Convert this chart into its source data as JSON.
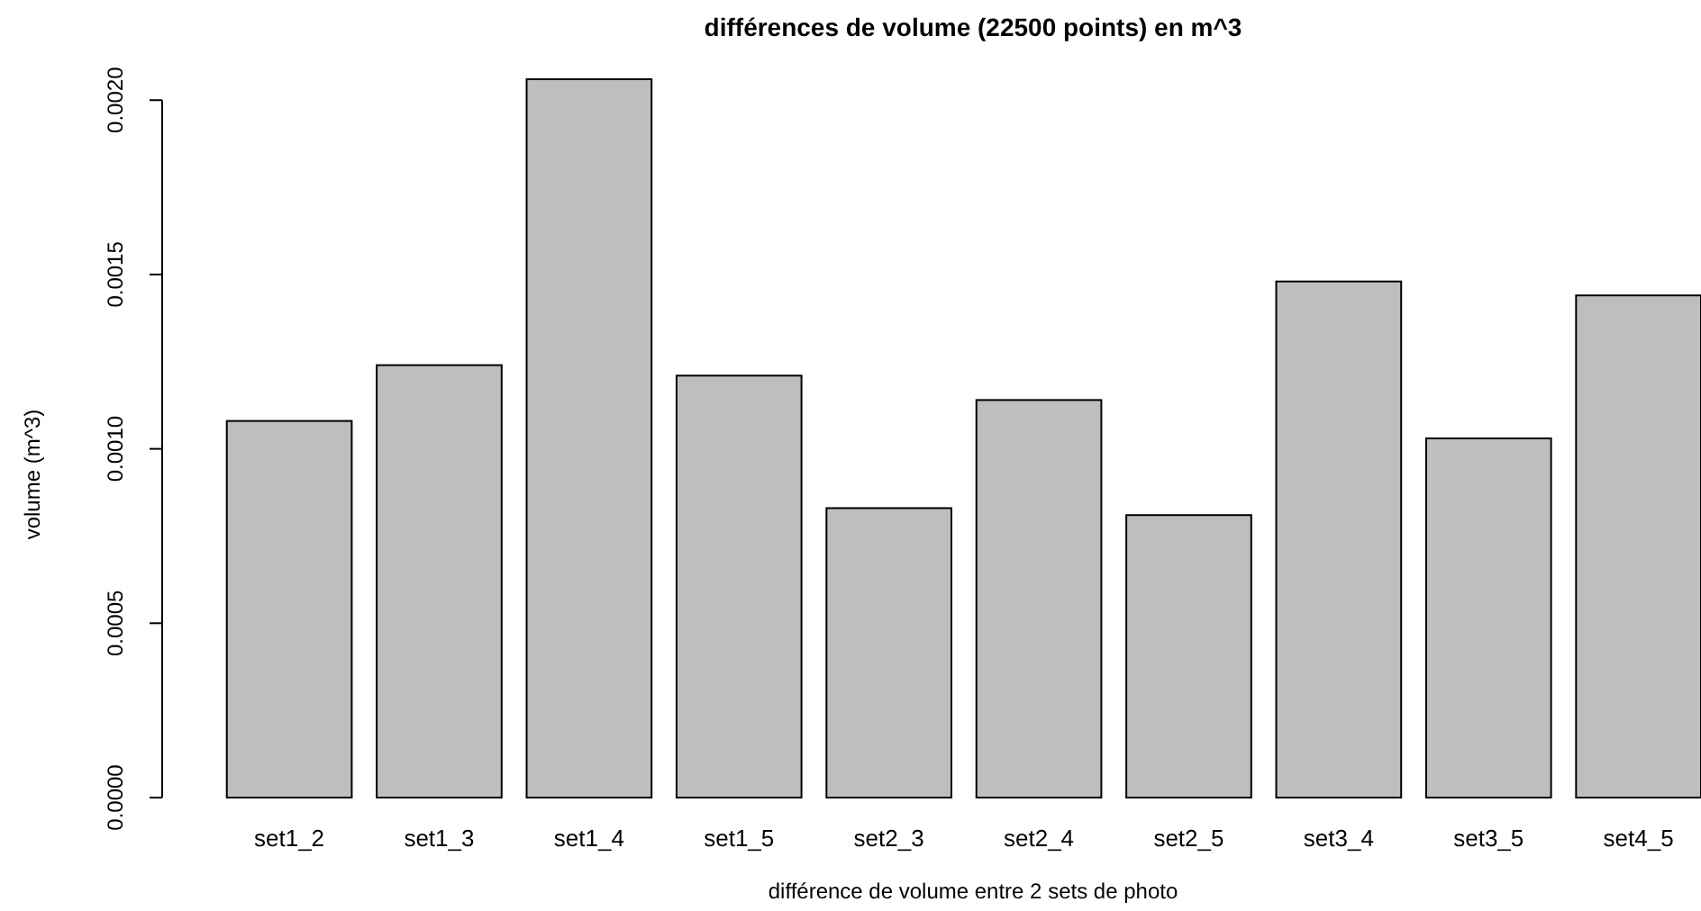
{
  "chart_data": {
    "type": "bar",
    "title": "différences de volume (22500 points) en m^3",
    "xlabel": "différence de volume entre 2 sets de photo",
    "ylabel": "volume (m^3)",
    "categories": [
      "set1_2",
      "set1_3",
      "set1_4",
      "set1_5",
      "set2_3",
      "set2_4",
      "set2_5",
      "set3_4",
      "set3_5",
      "set4_5"
    ],
    "values": [
      0.00108,
      0.00124,
      0.00206,
      0.00121,
      0.00083,
      0.00114,
      0.00081,
      0.00148,
      0.00103,
      0.00144
    ],
    "color": "#bebebe",
    "ylim": [
      0,
      0.00206
    ],
    "yticks": [
      {
        "value": 0,
        "label": "0.0000"
      },
      {
        "value": 0.0005,
        "label": "0.0005"
      },
      {
        "value": 0.001,
        "label": "0.0010"
      },
      {
        "value": 0.0015,
        "label": "0.0015"
      },
      {
        "value": 0.002,
        "label": "0.0020"
      }
    ]
  }
}
